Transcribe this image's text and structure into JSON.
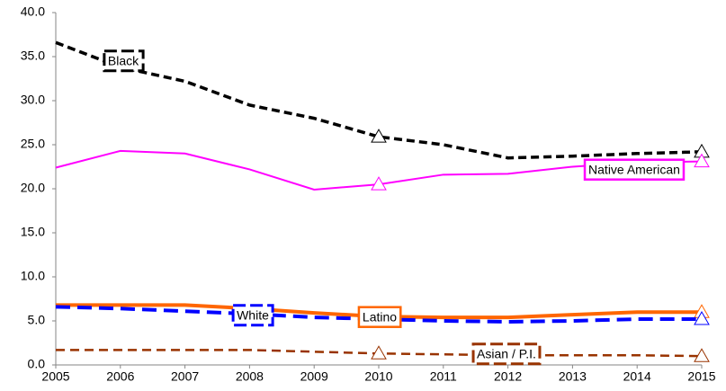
{
  "chart_data": {
    "type": "line",
    "x": [
      2005,
      2006,
      2007,
      2008,
      2009,
      2010,
      2011,
      2012,
      2013,
      2014,
      2015
    ],
    "xlim": [
      2005,
      2015
    ],
    "xticks": [
      2005,
      2006,
      2007,
      2008,
      2009,
      2010,
      2011,
      2012,
      2013,
      2014,
      2015
    ],
    "ylim": [
      0,
      40
    ],
    "yticks": [
      {
        "value": 0,
        "label": "0.0"
      },
      {
        "value": 5,
        "label": "5.0"
      },
      {
        "value": 10,
        "label": "10.0"
      },
      {
        "value": 15,
        "label": "15.0"
      },
      {
        "value": 20,
        "label": "20.0"
      },
      {
        "value": 25,
        "label": "25.0"
      },
      {
        "value": 30,
        "label": "30.0"
      },
      {
        "value": 35,
        "label": "35.0"
      },
      {
        "value": 40,
        "label": "40.0"
      }
    ],
    "grid": false,
    "series": [
      {
        "name": "Black",
        "color": "#000000",
        "dashed": true,
        "values": [
          36.6,
          33.8,
          32.2,
          29.5,
          28.0,
          25.9,
          25.0,
          23.5,
          23.7,
          24.0,
          24.2
        ]
      },
      {
        "name": "Native American",
        "color": "#ff00ff",
        "dashed": false,
        "values": [
          22.4,
          24.3,
          24.0,
          22.2,
          19.9,
          20.5,
          21.6,
          21.7,
          22.5,
          23.0,
          23.1
        ]
      },
      {
        "name": "Latino",
        "color": "#ff6600",
        "dashed": false,
        "values": [
          6.8,
          6.8,
          6.8,
          6.4,
          5.9,
          5.5,
          5.4,
          5.4,
          5.7,
          6.0,
          6.0
        ]
      },
      {
        "name": "White",
        "color": "#0000ff",
        "dashed": true,
        "values": [
          6.6,
          6.4,
          6.1,
          5.8,
          5.4,
          5.2,
          5.0,
          4.9,
          5.0,
          5.2,
          5.2
        ]
      },
      {
        "name": "Asian / P.I.",
        "color": "#993300",
        "dashed": true,
        "values": [
          1.7,
          1.7,
          1.7,
          1.7,
          1.5,
          1.3,
          1.2,
          1.1,
          1.1,
          1.1,
          1.0
        ]
      }
    ]
  }
}
